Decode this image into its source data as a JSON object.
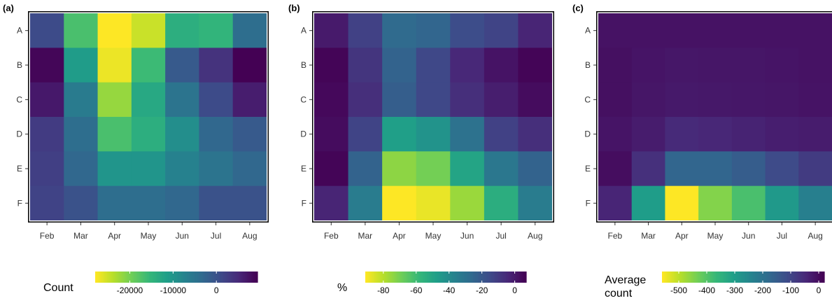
{
  "chart_data": [
    {
      "type": "heatmap",
      "panel_label": "(a)",
      "x_categories": [
        "Feb",
        "Mar",
        "Apr",
        "May",
        "Jun",
        "Jul",
        "Aug"
      ],
      "y_categories": [
        "A",
        "B",
        "C",
        "D",
        "E",
        "F"
      ],
      "values": [
        [
          1000,
          -17000,
          -28000,
          -25000,
          -14000,
          -15000,
          -4000
        ],
        [
          9000,
          -11000,
          -27000,
          -16000,
          -1000,
          4000,
          9500
        ],
        [
          7000,
          -6000,
          -22000,
          -13000,
          -5000,
          1000,
          6500
        ],
        [
          3000,
          -4000,
          -17000,
          -14000,
          -9000,
          -3000,
          -1000
        ],
        [
          2500,
          -3000,
          -10000,
          -10000,
          -7000,
          -5000,
          -3000
        ],
        [
          2000,
          0,
          -4000,
          -4000,
          -3000,
          0,
          0
        ]
      ],
      "colorbar": {
        "title": "Count",
        "min": -28000,
        "max": 9500,
        "ticks": [
          -20000,
          -10000,
          0
        ],
        "tick_labels": [
          "-20000",
          "-10000",
          "0"
        ],
        "reversed": true
      }
    },
    {
      "type": "heatmap",
      "panel_label": "(b)",
      "x_categories": [
        "Feb",
        "Mar",
        "Apr",
        "May",
        "Jun",
        "Jul",
        "Aug"
      ],
      "y_categories": [
        "A",
        "B",
        "C",
        "D",
        "E",
        "F"
      ],
      "values": [
        [
          0,
          -12,
          -27,
          -25,
          -16,
          -13,
          -3
        ],
        [
          6,
          -8,
          -24,
          -14,
          -4,
          2,
          6
        ],
        [
          5,
          -6,
          -22,
          -14,
          -6,
          -1,
          4
        ],
        [
          4,
          -13,
          -48,
          -43,
          -30,
          -12,
          -6
        ],
        [
          6,
          -24,
          -74,
          -70,
          -50,
          -32,
          -24
        ],
        [
          -3,
          -34,
          -91,
          -88,
          -76,
          -54,
          -34
        ]
      ],
      "colorbar": {
        "title": "%",
        "min": -91,
        "max": 7,
        "ticks": [
          -80,
          -60,
          -40,
          -20,
          0
        ],
        "tick_labels": [
          "-80",
          "-60",
          "-40",
          "-20",
          "0"
        ],
        "reversed": true
      }
    },
    {
      "type": "heatmap",
      "panel_label": "(c)",
      "x_categories": [
        "Feb",
        "Mar",
        "Apr",
        "May",
        "Jun",
        "Jul",
        "Aug"
      ],
      "y_categories": [
        "A",
        "B",
        "C",
        "D",
        "E",
        "F"
      ],
      "values": [
        [
          -8,
          -8,
          -8,
          -8,
          -8,
          -8,
          -8
        ],
        [
          -4,
          -12,
          -16,
          -14,
          -14,
          -12,
          -8
        ],
        [
          -4,
          -14,
          -20,
          -18,
          -16,
          -14,
          -10
        ],
        [
          -12,
          -24,
          -48,
          -42,
          -36,
          -28,
          -24
        ],
        [
          0,
          -60,
          -170,
          -170,
          -150,
          -110,
          -80
        ],
        [
          -40,
          -300,
          -560,
          -450,
          -390,
          -290,
          -230
        ]
      ],
      "colorbar": {
        "title_lines": [
          "Average",
          "count"
        ],
        "min": -560,
        "max": 20,
        "ticks": [
          -500,
          -400,
          -300,
          -200,
          -100,
          0
        ],
        "tick_labels": [
          "-500",
          "-400",
          "-300",
          "-200",
          "-100",
          "0"
        ],
        "reversed": true
      }
    }
  ]
}
